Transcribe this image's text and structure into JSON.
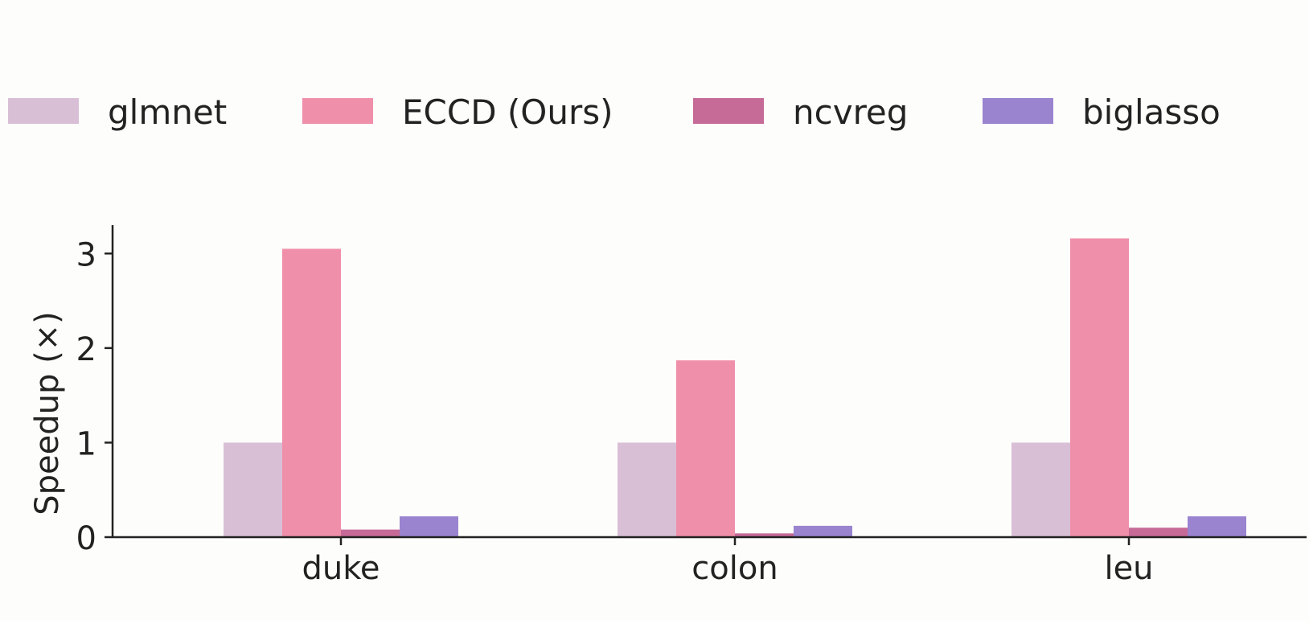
{
  "chart_data": {
    "type": "bar",
    "title": "",
    "xlabel": "",
    "ylabel": "Speedup (×)",
    "categories": [
      "duke",
      "colon",
      "leu"
    ],
    "series": [
      {
        "name": "glmnet",
        "values": [
          1.0,
          1.0,
          1.0
        ],
        "color": "#d9bfd6"
      },
      {
        "name": "ECCD (Ours)",
        "values": [
          3.05,
          1.87,
          3.16
        ],
        "color": "#f08faa"
      },
      {
        "name": "ncvreg",
        "values": [
          0.08,
          0.04,
          0.1
        ],
        "color": "#c66a98"
      },
      {
        "name": "biglasso",
        "values": [
          0.22,
          0.12,
          0.22
        ],
        "color": "#9a84d0"
      }
    ],
    "ylim": [
      0,
      3.3
    ],
    "yticks": [
      0,
      1,
      2,
      3
    ],
    "grid": false,
    "legend_position": "top"
  }
}
